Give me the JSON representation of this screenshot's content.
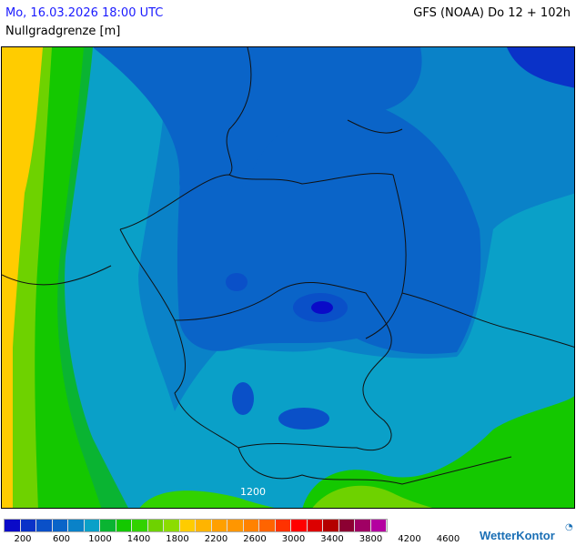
{
  "header": {
    "datetime": "Mo, 16.03.2026 18:00 UTC",
    "model": "GFS (NOAA) Do 12 + 102h",
    "parameter": "Nullgradgrenze [m]"
  },
  "map": {
    "isoline_label": "1200"
  },
  "legend": {
    "colors": [
      "#0a0ac8",
      "#0a32c8",
      "#0a50c8",
      "#0a64c8",
      "#0a82c8",
      "#0aa0c8",
      "#0ab432",
      "#14c800",
      "#32d200",
      "#6ed200",
      "#8cdc00",
      "#ffcc00",
      "#ffb400",
      "#ffa000",
      "#ff9600",
      "#ff8200",
      "#ff6400",
      "#ff3200",
      "#ff0000",
      "#dc0000",
      "#b40000",
      "#8c0032",
      "#a00064",
      "#b400a0"
    ],
    "labels": [
      "200",
      "600",
      "1000",
      "1400",
      "1800",
      "2200",
      "2600",
      "3000",
      "3400",
      "3800",
      "4200",
      "4600"
    ]
  },
  "logo": {
    "text": "WetterKontor",
    "icon": "wetterkontor-logo-icon"
  }
}
